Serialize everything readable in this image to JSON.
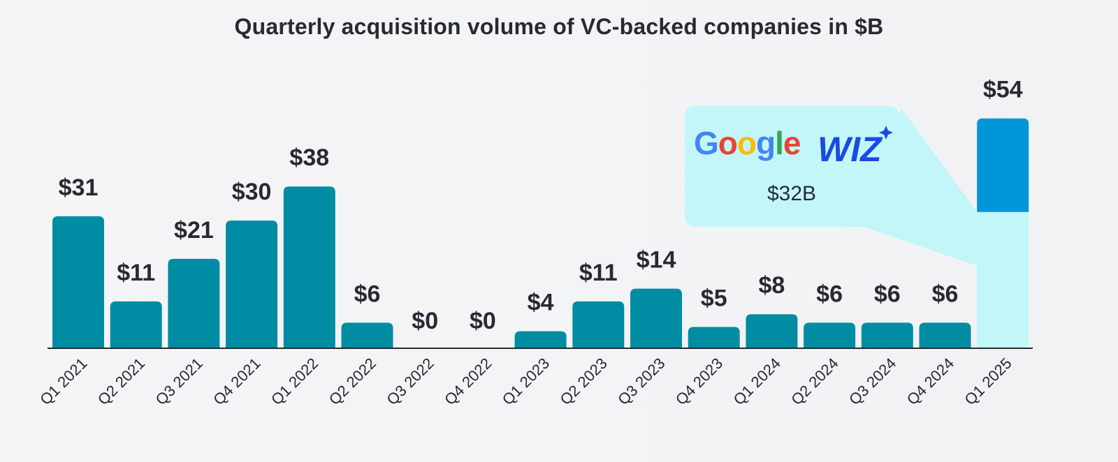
{
  "chart_data": {
    "type": "bar",
    "title": "Quarterly acquisition volume of VC-backed companies in $B",
    "categories": [
      "Q1 2021",
      "Q2 2021",
      "Q3 2021",
      "Q4 2021",
      "Q1 2022",
      "Q2 2022",
      "Q3 2022",
      "Q4 2022",
      "Q1 2023",
      "Q2 2023",
      "Q3 2023",
      "Q4 2023",
      "Q1 2024",
      "Q2 2024",
      "Q3 2024",
      "Q4 2024",
      "Q1 2025"
    ],
    "values": [
      31,
      11,
      21,
      30,
      38,
      6,
      0,
      0,
      4,
      11,
      14,
      5,
      8,
      6,
      6,
      6,
      54
    ],
    "data_labels": [
      "$31",
      "$11",
      "$21",
      "$30",
      "$38",
      "$6",
      "$0",
      "$0",
      "$4",
      "$11",
      "$14",
      "$5",
      "$8",
      "$6",
      "$6",
      "$6",
      "$54"
    ],
    "ylim": [
      0,
      60
    ],
    "grid": false,
    "bar_color": "#008da3",
    "highlight": {
      "category": "Q1 2025",
      "segment_value": 32,
      "segment_label": "$32B",
      "segment_color": "#c3f6f8",
      "top_color": "#0196d9",
      "logos": [
        "Google",
        "WIZ"
      ]
    }
  }
}
